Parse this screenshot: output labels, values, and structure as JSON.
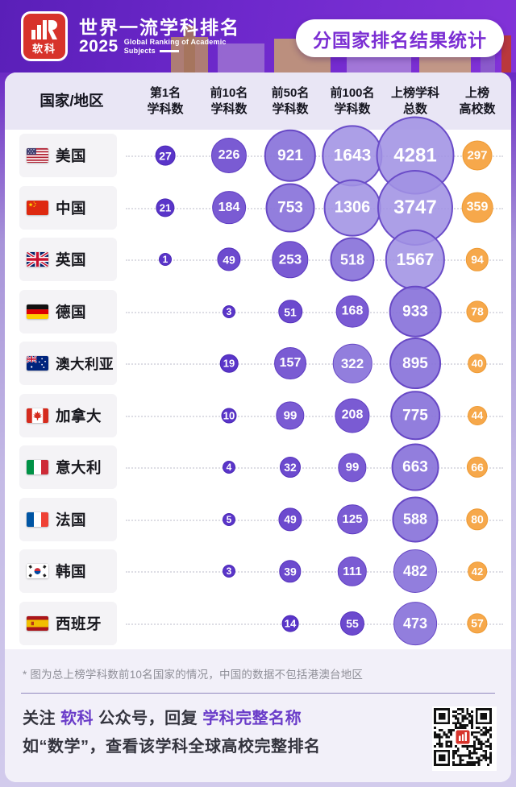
{
  "header": {
    "logo_text": "软科",
    "title_cn": "世界一流学科排名",
    "year": "2025",
    "title_en": "Global Ranking of Academic Subjects",
    "badge": "分国家排名结果统计"
  },
  "table": {
    "country_header": "国家/地区",
    "value_columns": [
      {
        "line1": "第1名",
        "line2": "学科数"
      },
      {
        "line1": "前10名",
        "line2": "学科数"
      },
      {
        "line1": "前50名",
        "line2": "学科数"
      },
      {
        "line1": "前100名",
        "line2": "学科数"
      },
      {
        "line1": "上榜学科",
        "line2": "总数"
      },
      {
        "line1": "上榜",
        "line2": "高校数"
      }
    ],
    "rows": [
      {
        "country": "美国",
        "flag": "us",
        "values": [
          27,
          226,
          921,
          1643,
          4281,
          297
        ]
      },
      {
        "country": "中国",
        "flag": "cn",
        "values": [
          21,
          184,
          753,
          1306,
          3747,
          359
        ]
      },
      {
        "country": "英国",
        "flag": "gb",
        "values": [
          1,
          49,
          253,
          518,
          1567,
          94
        ]
      },
      {
        "country": "德国",
        "flag": "de",
        "values": [
          null,
          3,
          51,
          168,
          933,
          78
        ]
      },
      {
        "country": "澳大利亚",
        "flag": "au",
        "values": [
          null,
          19,
          157,
          322,
          895,
          40
        ]
      },
      {
        "country": "加拿大",
        "flag": "ca",
        "values": [
          null,
          10,
          99,
          208,
          775,
          44
        ]
      },
      {
        "country": "意大利",
        "flag": "it",
        "values": [
          null,
          4,
          32,
          99,
          663,
          66
        ]
      },
      {
        "country": "法国",
        "flag": "fr",
        "values": [
          null,
          5,
          49,
          125,
          588,
          80
        ]
      },
      {
        "country": "韩国",
        "flag": "kr",
        "values": [
          null,
          3,
          39,
          111,
          482,
          42
        ]
      },
      {
        "country": "西班牙",
        "flag": "es",
        "values": [
          null,
          null,
          14,
          55,
          473,
          57
        ]
      }
    ]
  },
  "footnote": "* 图为总上榜学科数前10名国家的情况，中国的数据不包括港澳台地区",
  "footer": {
    "line1_segments": [
      {
        "text": "关注 ",
        "highlight": false
      },
      {
        "text": "软科",
        "highlight": true
      },
      {
        "text": " 公众号，回复 ",
        "highlight": false
      },
      {
        "text": "学科完整名称",
        "highlight": true
      }
    ],
    "line2": "如“数学”，查看该学科全球高校完整排名",
    "qr_icon": "qr-code-with-ruanke-logo"
  },
  "colors": {
    "header_purple": "#6d28cb",
    "accent_purple": "#7b2ed3",
    "bubble_dark_purple": "#5a35c9",
    "bubble_light_purple": "#a091e3",
    "bubble_orange": "#f6a84b",
    "highlight_text": "#6a3cc9",
    "thead_bg": "#e9e6f5",
    "logo_red": "#d7332b"
  },
  "chart_data": {
    "type": "table",
    "title": "分国家排名结果统计",
    "subtitle": "世界一流学科排名 2025 Global Ranking of Academic Subjects",
    "encoding": "bubble area proportional to value; last column in orange",
    "categories": [
      "美国",
      "中国",
      "英国",
      "德国",
      "澳大利亚",
      "加拿大",
      "意大利",
      "法国",
      "韩国",
      "西班牙"
    ],
    "series": [
      {
        "name": "第1名学科数",
        "values": [
          27,
          21,
          1,
          null,
          null,
          null,
          null,
          null,
          null,
          null
        ]
      },
      {
        "name": "前10名学科数",
        "values": [
          226,
          184,
          49,
          3,
          19,
          10,
          4,
          5,
          3,
          null
        ]
      },
      {
        "name": "前50名学科数",
        "values": [
          921,
          753,
          253,
          51,
          157,
          99,
          32,
          49,
          39,
          14
        ]
      },
      {
        "name": "前100名学科数",
        "values": [
          1643,
          1306,
          518,
          168,
          322,
          208,
          99,
          125,
          111,
          55
        ]
      },
      {
        "name": "上榜学科总数",
        "values": [
          4281,
          3747,
          1567,
          933,
          895,
          775,
          663,
          588,
          482,
          473
        ]
      },
      {
        "name": "上榜高校数",
        "values": [
          297,
          359,
          94,
          78,
          40,
          44,
          66,
          80,
          42,
          57
        ]
      }
    ],
    "footnote": "* 图为总上榜学科数前10名国家的情况，中国的数据不包括港澳台地区"
  }
}
